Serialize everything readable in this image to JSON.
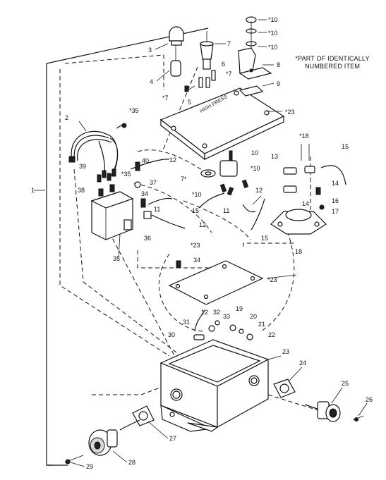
{
  "note": {
    "line1": "*PART OF IDENTICALLY",
    "line2": "NUMBERED ITEM"
  },
  "callouts": [
    {
      "id": "c1",
      "text": "1"
    },
    {
      "id": "c2",
      "text": "2"
    },
    {
      "id": "c3",
      "text": "3"
    },
    {
      "id": "c4",
      "text": "4"
    },
    {
      "id": "c5",
      "text": "5"
    },
    {
      "id": "c6",
      "text": "6"
    },
    {
      "id": "c7a",
      "text": "7"
    },
    {
      "id": "c7b",
      "text": "*7"
    },
    {
      "id": "c7c",
      "text": "*7"
    },
    {
      "id": "c7d",
      "text": "7*"
    },
    {
      "id": "c8",
      "text": "8"
    },
    {
      "id": "c9",
      "text": "9"
    },
    {
      "id": "c10a",
      "text": "*10"
    },
    {
      "id": "c10b",
      "text": "*10"
    },
    {
      "id": "c10c",
      "text": "*10"
    },
    {
      "id": "c10d",
      "text": "10"
    },
    {
      "id": "c10e",
      "text": "*10"
    },
    {
      "id": "c10f",
      "text": "*10"
    },
    {
      "id": "c11a",
      "text": "11"
    },
    {
      "id": "c11b",
      "text": "11"
    },
    {
      "id": "c12a",
      "text": "12"
    },
    {
      "id": "c12b",
      "text": "12"
    },
    {
      "id": "c12c",
      "text": "12"
    },
    {
      "id": "c12d",
      "text": "12"
    },
    {
      "id": "c13",
      "text": "13"
    },
    {
      "id": "c14a",
      "text": "14"
    },
    {
      "id": "c14b",
      "text": "14"
    },
    {
      "id": "c15a",
      "text": "15"
    },
    {
      "id": "c15b",
      "text": "15"
    },
    {
      "id": "c15c",
      "text": "15"
    },
    {
      "id": "c16",
      "text": "16"
    },
    {
      "id": "c17",
      "text": "17"
    },
    {
      "id": "c18a",
      "text": "*18"
    },
    {
      "id": "c18b",
      "text": "18"
    },
    {
      "id": "c19",
      "text": "19"
    },
    {
      "id": "c20",
      "text": "20"
    },
    {
      "id": "c21",
      "text": "21"
    },
    {
      "id": "c22",
      "text": "22"
    },
    {
      "id": "c23a",
      "text": "*23"
    },
    {
      "id": "c23b",
      "text": "*23"
    },
    {
      "id": "c23c",
      "text": "*23"
    },
    {
      "id": "c23d",
      "text": "23"
    },
    {
      "id": "c24",
      "text": "24"
    },
    {
      "id": "c25",
      "text": "25"
    },
    {
      "id": "c26",
      "text": "26"
    },
    {
      "id": "c27",
      "text": "27"
    },
    {
      "id": "c28",
      "text": "28"
    },
    {
      "id": "c29",
      "text": "29"
    },
    {
      "id": "c30",
      "text": "30"
    },
    {
      "id": "c31",
      "text": "31"
    },
    {
      "id": "c32",
      "text": "32"
    },
    {
      "id": "c33",
      "text": "33"
    },
    {
      "id": "c34a",
      "text": "34"
    },
    {
      "id": "c34b",
      "text": "34"
    },
    {
      "id": "c35a",
      "text": "*35"
    },
    {
      "id": "c35b",
      "text": "*35"
    },
    {
      "id": "c35c",
      "text": "35"
    },
    {
      "id": "c36",
      "text": "36"
    },
    {
      "id": "c37",
      "text": "37"
    },
    {
      "id": "c38",
      "text": "38"
    },
    {
      "id": "c39",
      "text": "39"
    },
    {
      "id": "c40",
      "text": "40"
    }
  ]
}
